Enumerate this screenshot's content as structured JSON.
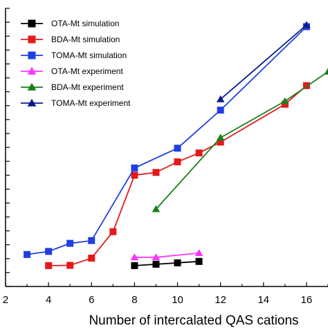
{
  "chart_data": {
    "type": "line",
    "title": "",
    "xlabel": "Number of intercalated QAS cations",
    "ylabel": "",
    "xlim": [
      2,
      17
    ],
    "ylim": [
      0,
      100
    ],
    "x_ticks": [
      2,
      4,
      6,
      8,
      10,
      12,
      14,
      16
    ],
    "x_tick_labels": [
      "2",
      "4",
      "6",
      "8",
      "10",
      "12",
      "14",
      "16"
    ],
    "legend_position": "top-left",
    "grid": false,
    "series": [
      {
        "name": "OTA-Mt simulation",
        "color": "#000000",
        "marker": "square",
        "x": [
          8,
          9,
          10,
          11
        ],
        "y": [
          7.5,
          8.0,
          8.5,
          9.0
        ]
      },
      {
        "name": "BDA-Mt simulation",
        "color": "#e41a1c",
        "marker": "square",
        "x": [
          4,
          5,
          6,
          7,
          8,
          9,
          10,
          11,
          12,
          15,
          16
        ],
        "y": [
          7.5,
          7.6,
          10.2,
          19.7,
          40.0,
          41.0,
          44.8,
          48.0,
          51.9,
          65.5,
          72.2
        ]
      },
      {
        "name": "TOMA-Mt simulation",
        "color": "#1f3fe0",
        "marker": "square",
        "x": [
          3,
          4,
          5,
          6,
          8,
          10,
          12,
          16
        ],
        "y": [
          11.5,
          12.6,
          15.5,
          16.5,
          42.6,
          49.7,
          63.4,
          93.4
        ]
      },
      {
        "name": "OTA-Mt experiment",
        "color": "#ff33ff",
        "marker": "triangle-up",
        "x": [
          8,
          9,
          11
        ],
        "y": [
          10.5,
          10.5,
          12.0
        ]
      },
      {
        "name": "BDA-Mt experiment",
        "color": "#1a7f1a",
        "marker": "triangle-up",
        "x": [
          9,
          12,
          15,
          17
        ],
        "y": [
          27.8,
          53.5,
          66.6,
          77.2
        ]
      },
      {
        "name": "TOMA-Mt experiment",
        "color": "#0b1a8c",
        "marker": "triangle-up",
        "x": [
          12,
          16
        ],
        "y": [
          67.3,
          94.0
        ]
      }
    ]
  }
}
